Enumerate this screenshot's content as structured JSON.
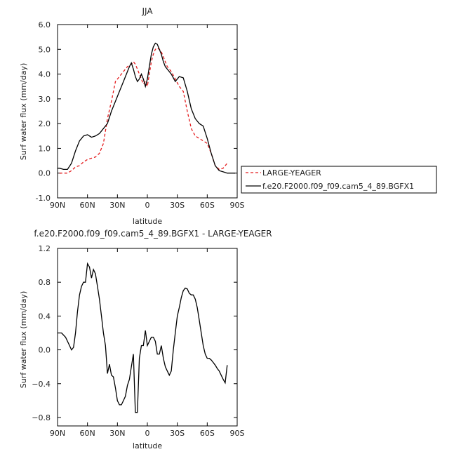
{
  "colors": {
    "red": "#e41a1c",
    "black": "#000000",
    "axis": "#000000"
  },
  "chart_data": [
    {
      "type": "line",
      "title": "JJA",
      "xlabel": "latitude",
      "ylabel": "Surf water flux (mm/day)",
      "xlim": [
        90,
        -90
      ],
      "ylim": [
        -1.0,
        6.0
      ],
      "x_tick_values": [
        90,
        60,
        30,
        0,
        -30,
        -60,
        -90
      ],
      "x_tick_labels": [
        "90N",
        "60N",
        "30N",
        "0",
        "30S",
        "60S",
        "90S"
      ],
      "y_tick_values": [
        -1,
        0,
        1,
        2,
        3,
        4,
        5,
        6
      ],
      "y_tick_labels": [
        "-1.0",
        "0.0",
        "1.0",
        "2.0",
        "3.0",
        "4.0",
        "5.0",
        "6.0"
      ],
      "legend_position": "right, outside plot",
      "series": [
        {
          "name": "LARGE-YEAGER",
          "color": "#e41a1c",
          "dash": "dashed",
          "x": [
            88,
            84,
            80,
            76,
            72,
            68,
            64,
            60,
            56,
            52,
            48,
            44,
            40,
            36,
            32,
            28,
            24,
            20,
            16,
            14,
            12,
            10,
            8,
            6,
            4,
            2,
            0,
            -2,
            -4,
            -6,
            -8,
            -10,
            -12,
            -14,
            -16,
            -20,
            -24,
            -28,
            -32,
            -36,
            -40,
            -44,
            -48,
            -52,
            -56,
            -60,
            -64,
            -68,
            -72,
            -76,
            -80
          ],
          "y": [
            0.0,
            0.0,
            0.0,
            0.1,
            0.25,
            0.3,
            0.45,
            0.55,
            0.6,
            0.65,
            0.8,
            1.2,
            2.2,
            2.9,
            3.7,
            3.9,
            4.1,
            4.3,
            4.4,
            4.5,
            4.4,
            4.2,
            4.0,
            3.8,
            3.6,
            3.7,
            3.5,
            4.0,
            4.5,
            4.8,
            5.0,
            5.05,
            5.0,
            4.9,
            4.7,
            4.3,
            4.1,
            3.8,
            3.5,
            3.3,
            2.5,
            1.8,
            1.5,
            1.4,
            1.3,
            1.2,
            0.8,
            0.3,
            0.15,
            0.2,
            0.4
          ]
        },
        {
          "name": "f.e20.F2000.f09_f09.cam5_4_89.BGFX1",
          "color": "#000000",
          "dash": "solid",
          "x": [
            90,
            88,
            84,
            80,
            76,
            72,
            68,
            64,
            60,
            56,
            52,
            48,
            44,
            40,
            36,
            32,
            28,
            24,
            20,
            18,
            16,
            14,
            12,
            10,
            8,
            6,
            4,
            2,
            0,
            -2,
            -4,
            -6,
            -8,
            -10,
            -12,
            -14,
            -16,
            -18,
            -20,
            -24,
            -28,
            -32,
            -36,
            -40,
            -44,
            -48,
            -52,
            -56,
            -60,
            -64,
            -68,
            -72,
            -76,
            -80,
            -84,
            -88
          ],
          "y": [
            0.2,
            0.2,
            0.15,
            0.15,
            0.4,
            0.9,
            1.3,
            1.5,
            1.55,
            1.45,
            1.5,
            1.6,
            1.8,
            2.0,
            2.5,
            2.9,
            3.3,
            3.7,
            4.1,
            4.3,
            4.45,
            4.2,
            3.9,
            3.7,
            3.8,
            4.0,
            3.8,
            3.5,
            3.8,
            4.3,
            4.8,
            5.1,
            5.25,
            5.2,
            5.0,
            4.8,
            4.5,
            4.3,
            4.2,
            4.0,
            3.7,
            3.9,
            3.85,
            3.3,
            2.6,
            2.2,
            2.0,
            1.9,
            1.4,
            0.8,
            0.3,
            0.1,
            0.05,
            0.0,
            0.0,
            0.0
          ]
        }
      ]
    },
    {
      "type": "line",
      "title": "f.e20.F2000.f09_f09.cam5_4_89.BGFX1 - LARGE-YEAGER",
      "xlabel": "latitude",
      "ylabel": "Surf water flux (mm/day)",
      "xlim": [
        90,
        -90
      ],
      "ylim": [
        -0.9,
        1.2
      ],
      "x_tick_values": [
        90,
        60,
        30,
        0,
        -30,
        -60,
        -90
      ],
      "x_tick_labels": [
        "90N",
        "60N",
        "30N",
        "0",
        "30S",
        "60S",
        "90S"
      ],
      "y_tick_values": [
        -0.8,
        -0.4,
        0.0,
        0.4,
        0.8,
        1.2
      ],
      "y_tick_labels": [
        "−0.8",
        "−0.4",
        "0.0",
        "0.4",
        "0.8",
        "1.2"
      ],
      "series": [
        {
          "color": "#000000",
          "x": [
            90,
            86,
            82,
            78,
            76,
            74,
            72,
            70,
            68,
            66,
            64,
            62,
            60,
            58,
            56,
            54,
            52,
            50,
            48,
            46,
            44,
            42,
            40,
            38,
            36,
            34,
            32,
            30,
            28,
            26,
            24,
            22,
            20,
            18,
            16,
            14,
            12,
            10,
            8,
            6,
            4,
            2,
            0,
            -2,
            -4,
            -6,
            -8,
            -10,
            -12,
            -14,
            -16,
            -18,
            -20,
            -22,
            -24,
            -26,
            -28,
            -30,
            -32,
            -34,
            -36,
            -38,
            -40,
            -42,
            -44,
            -46,
            -48,
            -50,
            -52,
            -54,
            -56,
            -58,
            -60,
            -62,
            -64,
            -66,
            -68,
            -70,
            -72,
            -74,
            -76,
            -78,
            -80
          ],
          "y": [
            0.2,
            0.2,
            0.15,
            0.05,
            0.0,
            0.03,
            0.2,
            0.45,
            0.65,
            0.75,
            0.8,
            0.8,
            1.02,
            0.98,
            0.85,
            0.95,
            0.9,
            0.75,
            0.6,
            0.4,
            0.2,
            0.05,
            -0.28,
            -0.17,
            -0.3,
            -0.32,
            -0.45,
            -0.6,
            -0.65,
            -0.65,
            -0.6,
            -0.55,
            -0.42,
            -0.35,
            -0.2,
            -0.05,
            -0.74,
            -0.74,
            -0.1,
            0.05,
            0.05,
            0.23,
            0.05,
            0.1,
            0.15,
            0.15,
            0.1,
            -0.05,
            -0.05,
            0.05,
            -0.1,
            -0.2,
            -0.25,
            -0.3,
            -0.25,
            0.0,
            0.2,
            0.4,
            0.5,
            0.62,
            0.7,
            0.73,
            0.72,
            0.67,
            0.65,
            0.65,
            0.6,
            0.5,
            0.35,
            0.2,
            0.05,
            -0.05,
            -0.1,
            -0.1,
            -0.12,
            -0.15,
            -0.18,
            -0.22,
            -0.25,
            -0.3,
            -0.35,
            -0.39,
            -0.18
          ]
        }
      ]
    }
  ]
}
